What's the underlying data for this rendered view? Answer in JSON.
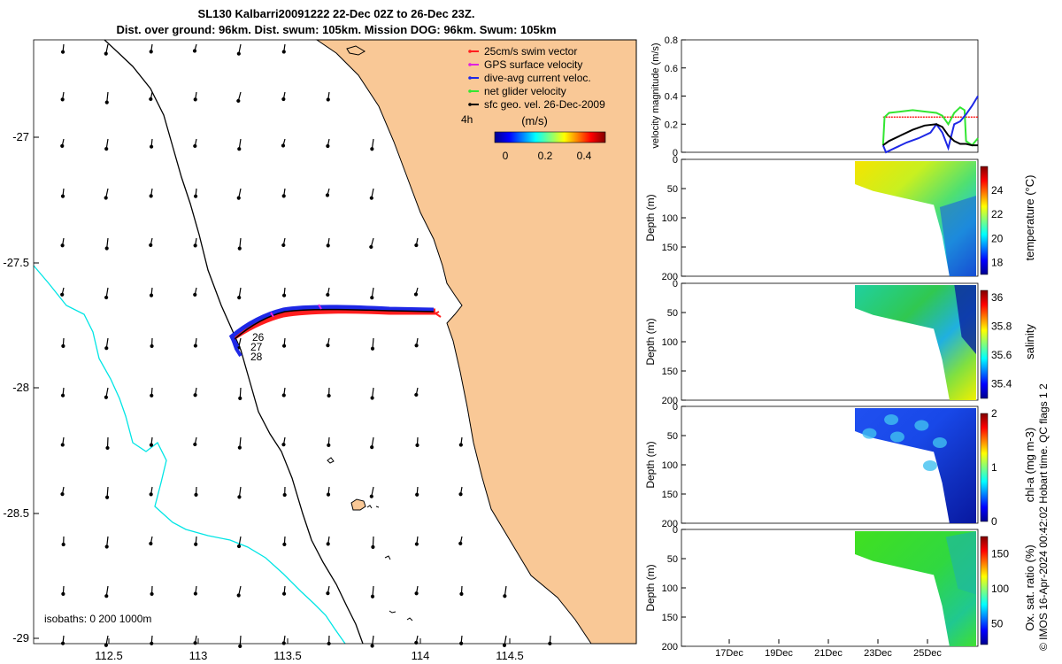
{
  "header": {
    "title_line1": "SL130 Kalbarri20091222 22-Dec 02Z to 26-Dec 23Z.",
    "title_line2": "Dist. over ground: 96km. Dist. swum: 105km. Mission DOG: 96km. Swum: 105km"
  },
  "colors": {
    "land": "#f9c896",
    "coast": "#000000",
    "isobath": "#00e5e5",
    "swim": "#ff1e1e",
    "gps": "#e020e0",
    "dive": "#1e28e6",
    "net": "#32e632",
    "sfc": "#000000"
  },
  "map": {
    "x_ticks": [
      "112.5",
      "113",
      "113.5",
      "114",
      "114.5"
    ],
    "y_ticks": [
      "-27",
      "-27.5",
      "-28",
      "-28.5",
      "-29"
    ],
    "legend": [
      {
        "key": "swim",
        "label": "25cm/s swim vector"
      },
      {
        "key": "gps",
        "label": "GPS surface velocity"
      },
      {
        "key": "dive",
        "label": "dive-avg current veloc."
      },
      {
        "key": "net",
        "label": "net glider velocity"
      },
      {
        "key": "sfc",
        "label": "sfc geo. vel. 26-Dec-2009"
      }
    ],
    "interval_label": "4h",
    "colorbar_title": "(m/s)",
    "colorbar_ticks": [
      "0",
      "0.2",
      "0.4"
    ],
    "day_labels": [
      "26",
      "27",
      "28"
    ],
    "isobath_label": "isobaths: 0   200  1000m"
  },
  "panels": {
    "date_ticks": [
      "17Dec",
      "19Dec",
      "21Dec",
      "23Dec",
      "25Dec"
    ],
    "depth_label": "Depth (m)",
    "depth_ticks": [
      "0",
      "50",
      "100",
      "150",
      "200"
    ],
    "footer": "© IMOS 16-Apr-2024 00:42:02 Hobart time. QC flags 1  2"
  },
  "chart_data": [
    {
      "type": "line",
      "title": "",
      "xlabel": "",
      "ylabel": "velocity magnitude (m/s)",
      "xlim": [
        0,
        1
      ],
      "ylim": [
        0,
        0.8
      ],
      "yticks": [
        "0",
        "0.2",
        "0.4",
        "0.6",
        "0.8"
      ],
      "series": [
        {
          "name": "25cm/s swim vector",
          "color": "#ff1e1e",
          "x": [
            0.68,
            0.72,
            0.76,
            0.8,
            0.84,
            0.88,
            0.92,
            0.96,
            1.0
          ],
          "y": [
            0.25,
            0.25,
            0.25,
            0.25,
            0.25,
            0.25,
            0.25,
            0.25,
            0.25
          ]
        },
        {
          "name": "net glider velocity",
          "color": "#32e632",
          "x": [
            0.68,
            0.685,
            0.7,
            0.74,
            0.78,
            0.82,
            0.86,
            0.88,
            0.9,
            0.92,
            0.94,
            0.955,
            0.96,
            0.98,
            1.0
          ],
          "y": [
            0.05,
            0.25,
            0.28,
            0.29,
            0.3,
            0.29,
            0.28,
            0.26,
            0.2,
            0.28,
            0.32,
            0.3,
            0.08,
            0.05,
            0.1
          ]
        },
        {
          "name": "dive-avg current veloc.",
          "color": "#1e28e6",
          "x": [
            0.68,
            0.69,
            0.72,
            0.76,
            0.8,
            0.84,
            0.86,
            0.88,
            0.9,
            0.92,
            0.94,
            0.96,
            0.98,
            1.0
          ],
          "y": [
            0.05,
            0.0,
            0.03,
            0.07,
            0.1,
            0.14,
            0.2,
            0.14,
            0.03,
            0.2,
            0.22,
            0.27,
            0.33,
            0.4
          ]
        },
        {
          "name": "sfc geo. vel.",
          "color": "#000000",
          "x": [
            0.68,
            0.7,
            0.74,
            0.78,
            0.82,
            0.86,
            0.88,
            0.9,
            0.92,
            0.94,
            0.96,
            0.98,
            1.0
          ],
          "y": [
            0.05,
            0.08,
            0.12,
            0.16,
            0.19,
            0.2,
            0.18,
            0.12,
            0.08,
            0.06,
            0.06,
            0.05,
            0.05
          ]
        }
      ]
    },
    {
      "type": "heatmap",
      "ylabel": "Depth (m)",
      "ylim": [
        200,
        0
      ],
      "colorbar_label": "temperature (°C)",
      "colorbar_ticks": [
        "18",
        "20",
        "22",
        "24"
      ],
      "clim": [
        17,
        26
      ]
    },
    {
      "type": "heatmap",
      "ylabel": "Depth (m)",
      "ylim": [
        200,
        0
      ],
      "colorbar_label": "salinity",
      "colorbar_ticks": [
        "35.4",
        "35.6",
        "35.8",
        "36"
      ],
      "clim": [
        35.3,
        36.05
      ]
    },
    {
      "type": "heatmap",
      "ylabel": "Depth (m)",
      "ylim": [
        200,
        0
      ],
      "colorbar_label": "chl-a (mg m-3)",
      "colorbar_ticks": [
        "0",
        "1",
        "2"
      ],
      "clim": [
        0,
        2
      ]
    },
    {
      "type": "heatmap",
      "ylabel": "Depth (m)",
      "ylim": [
        200,
        0
      ],
      "colorbar_label": "Ox. sat. ratio (%)",
      "colorbar_ticks": [
        "50",
        "100",
        "150"
      ],
      "clim": [
        20,
        175
      ]
    }
  ]
}
